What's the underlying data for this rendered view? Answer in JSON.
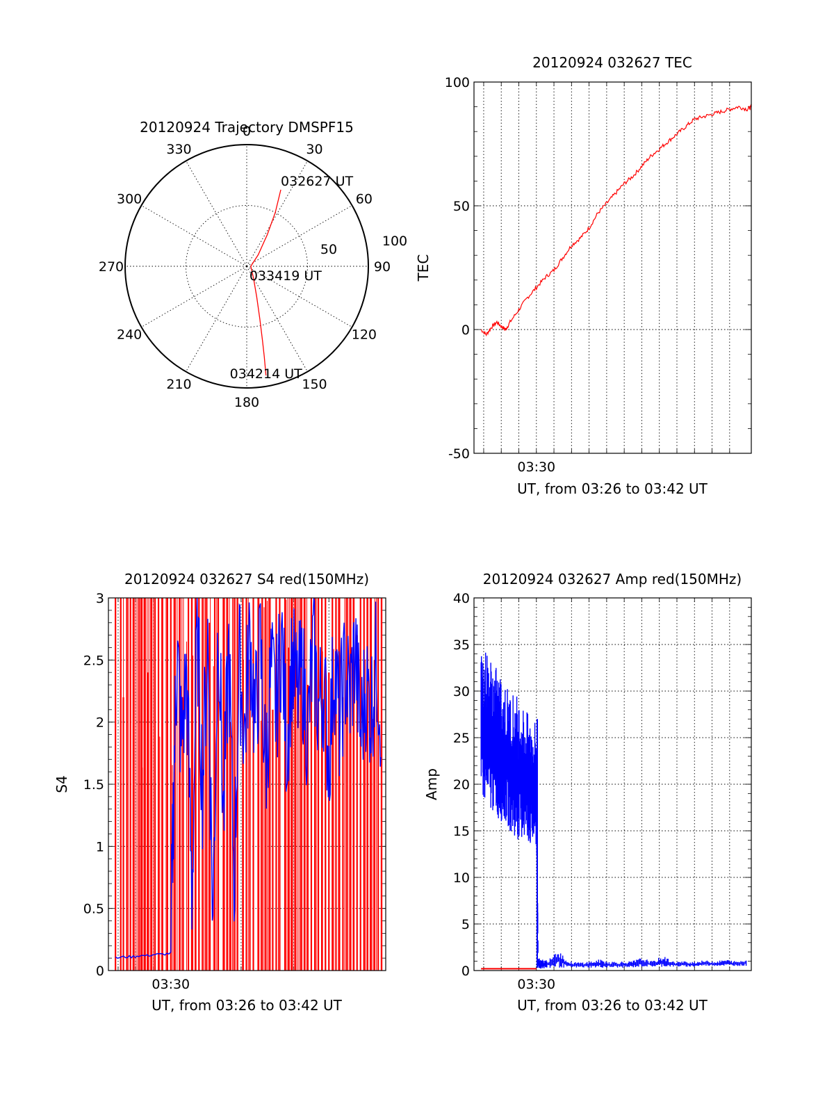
{
  "chart_data": [
    {
      "id": "trajectory",
      "type": "polar",
      "title": "20120924 Trajectory DMSPF15",
      "angle_labels": [
        "0",
        "30",
        "60",
        "90",
        "120",
        "150",
        "180",
        "210",
        "240",
        "270",
        "300",
        "330"
      ],
      "radial_ticks": [
        50,
        100
      ],
      "radial_labels": [
        "50",
        "100"
      ],
      "grid": true,
      "series": [
        {
          "color": "#ff0000",
          "points": [
            {
              "az": 24,
              "el": 28
            },
            {
              "az": 28,
              "el": 45
            },
            {
              "az": 33,
              "el": 62
            },
            {
              "az": 45,
              "el": 78
            },
            {
              "az": 90,
              "el": 87
            },
            {
              "az": 150,
              "el": 80
            },
            {
              "az": 162,
              "el": 66
            },
            {
              "az": 166,
              "el": 50
            },
            {
              "az": 168,
              "el": 34
            },
            {
              "az": 169,
              "el": 22
            },
            {
              "az": 170,
              "el": 8
            }
          ]
        }
      ],
      "annotations": [
        {
          "text": "032627 UT",
          "az": 24,
          "el": 28
        },
        {
          "text": "033419 UT",
          "az": 90,
          "el": 87
        },
        {
          "text": "034214 UT",
          "az": 170,
          "el": 8
        }
      ]
    },
    {
      "id": "tec",
      "type": "line",
      "title": "20120924 032627 TEC",
      "xlabel": "UT, from 03:26 to 03:42 UT",
      "ylabel": "TEC",
      "xlim_min": [
        3.4408,
        3.7039
      ],
      "ylim": [
        -50,
        100
      ],
      "yticks": [
        -50,
        0,
        50,
        100
      ],
      "xtick_labels": [
        {
          "x": 3.5,
          "label": "03:30"
        }
      ],
      "grid": true,
      "series": [
        {
          "color": "#ff0000",
          "x": [
            3.4475,
            3.4525,
            3.4575,
            3.4625,
            3.4675,
            3.4708,
            3.475,
            3.4833,
            3.4917,
            3.5,
            3.5083,
            3.5167,
            3.525,
            3.5333,
            3.5417,
            3.55,
            3.5583,
            3.5667,
            3.575,
            3.5833,
            3.5917,
            3.6,
            3.6083,
            3.6167,
            3.625,
            3.6333,
            3.6417,
            3.65,
            3.6583,
            3.6667,
            3.675,
            3.6833,
            3.6917,
            3.7,
            3.7039
          ],
          "values": [
            0,
            -2,
            1,
            3,
            1,
            0,
            3,
            8,
            13,
            17,
            21,
            24,
            29,
            34,
            37,
            41,
            47,
            51,
            55,
            59,
            62,
            66,
            70,
            73,
            76,
            79,
            82,
            85,
            86,
            87,
            88,
            89,
            90,
            89,
            90
          ]
        }
      ]
    },
    {
      "id": "s4",
      "type": "line",
      "title": "20120924 032627 S4 red(150MHz)",
      "xlabel": "UT, from 03:26 to 03:42 UT",
      "ylabel": "S4",
      "xlim_min": [
        3.4408,
        3.7039
      ],
      "ylim": [
        0,
        3
      ],
      "yticks": [
        0,
        0.5,
        1,
        1.5,
        2,
        2.5,
        3
      ],
      "ytick_labels": [
        "0",
        "0.5",
        "1",
        "1.5",
        "2",
        "2.5",
        "3"
      ],
      "xtick_labels": [
        {
          "x": 3.5,
          "label": "03:30"
        }
      ],
      "grid": true,
      "series": [
        {
          "color": "#ff0000",
          "note_render": "dense spikes between 0 and 3",
          "x": [
            3.4475,
            3.4525,
            3.455,
            3.4583,
            3.4617,
            3.465,
            3.47,
            3.4725,
            3.475,
            3.4783,
            3.4817,
            3.485,
            3.4883,
            3.4917,
            3.4967,
            3.5,
            3.5033,
            3.5083,
            3.5117,
            3.5167,
            3.52,
            3.5233,
            3.5267,
            3.53,
            3.5333,
            3.5367,
            3.5417,
            3.545,
            3.55,
            3.5533,
            3.5567,
            3.56,
            3.5633,
            3.5683,
            3.5717,
            3.575,
            3.5783,
            3.5833,
            3.5867,
            3.59,
            3.5933,
            3.5967,
            3.6,
            3.6033,
            3.6083,
            3.6117,
            3.615,
            3.6183,
            3.6233,
            3.6267,
            3.63,
            3.6333,
            3.6367,
            3.64,
            3.6433,
            3.6467,
            3.65,
            3.6533,
            3.6567,
            3.66,
            3.6633,
            3.6667,
            3.67,
            3.6733,
            3.6767,
            3.68,
            3.6833,
            3.6867,
            3.69,
            3.6933,
            3.6967,
            3.7
          ],
          "values": [
            3,
            3,
            2.2,
            3,
            3,
            3,
            3,
            3,
            3,
            2.4,
            3,
            3,
            3,
            3,
            3,
            3,
            3,
            3,
            2.2,
            3,
            3,
            3,
            3,
            3,
            3,
            2.8,
            3,
            3,
            3,
            3,
            2,
            3,
            3,
            3,
            3,
            2.5,
            3,
            3,
            3,
            3,
            3,
            2.1,
            3,
            3,
            3,
            2.6,
            3,
            3,
            3,
            3,
            2.3,
            3,
            3,
            3,
            3,
            3,
            2.4,
            3,
            3,
            3,
            2.2,
            3,
            3,
            3,
            2.7,
            3,
            3,
            3,
            3,
            2.5,
            3,
            3
          ]
        },
        {
          "color": "#0000ff",
          "x": [
            3.4475,
            3.455,
            3.4625,
            3.47,
            3.4775,
            3.485,
            3.4925,
            3.5,
            3.503,
            3.506,
            3.51,
            3.515,
            3.52,
            3.525,
            3.53,
            3.535,
            3.54,
            3.545,
            3.55,
            3.555,
            3.56,
            3.565,
            3.57,
            3.575,
            3.58,
            3.585,
            3.59,
            3.595,
            3.6,
            3.605,
            3.61,
            3.615,
            3.62,
            3.625,
            3.63,
            3.635,
            3.64,
            3.645,
            3.65,
            3.655,
            3.66,
            3.665,
            3.67,
            3.675,
            3.68,
            3.685,
            3.69,
            3.695,
            3.7
          ],
          "values": [
            0.1,
            0.11,
            0.11,
            0.12,
            0.12,
            0.13,
            0.13,
            0.14,
            1.6,
            2.6,
            1.8,
            2.4,
            0.6,
            2.8,
            1.5,
            2.7,
            0.4,
            2.9,
            1.2,
            2.6,
            0.7,
            2.5,
            1.9,
            2.7,
            2.0,
            2.6,
            1.6,
            2.4,
            2.1,
            2.7,
            1.8,
            2.5,
            2.2,
            2.4,
            1.9,
            2.6,
            2.1,
            2.3,
            1.7,
            2.5,
            2.0,
            2.4,
            2.2,
            2.6,
            1.9,
            2.3,
            2.1,
            2.5,
            2.0
          ]
        }
      ]
    },
    {
      "id": "amp",
      "type": "line",
      "title": "20120924 032627 Amp red(150MHz)",
      "xlabel": "UT, from 03:26 to 03:42 UT",
      "ylabel": "Amp",
      "xlim_min": [
        3.4408,
        3.7039
      ],
      "ylim": [
        0,
        40
      ],
      "yticks": [
        0,
        5,
        10,
        15,
        20,
        25,
        30,
        35,
        40
      ],
      "xtick_labels": [
        {
          "x": 3.5,
          "label": "03:30"
        }
      ],
      "grid": true,
      "series": [
        {
          "color": "#0000ff",
          "note_render": "noisy envelope",
          "x": [
            3.4475,
            3.45,
            3.455,
            3.46,
            3.465,
            3.47,
            3.475,
            3.48,
            3.485,
            3.49,
            3.495,
            3.5,
            3.5017,
            3.5033,
            3.51,
            3.52,
            3.53,
            3.54,
            3.55,
            3.56,
            3.57,
            3.58,
            3.59,
            3.6,
            3.61,
            3.62,
            3.63,
            3.64,
            3.65,
            3.66,
            3.67,
            3.68,
            3.69,
            3.7
          ],
          "upper": [
            34,
            35,
            34,
            33,
            32,
            31,
            30,
            30,
            29,
            28,
            27,
            27,
            1.5,
            1.2,
            1.2,
            2.5,
            1,
            0.9,
            1,
            1.2,
            1,
            1,
            1,
            1.4,
            1,
            1.6,
            1,
            1,
            1,
            1.1,
            1,
            1.2,
            1,
            1.2
          ],
          "lower": [
            20,
            18,
            17,
            17,
            16,
            16,
            15,
            14,
            14,
            14,
            13,
            13,
            0.3,
            0.2,
            0.2,
            0.3,
            0.3,
            0.3,
            0.3,
            0.3,
            0.3,
            0.3,
            0.3,
            0.4,
            0.4,
            0.4,
            0.4,
            0.4,
            0.4,
            0.5,
            0.5,
            0.5,
            0.5,
            0.5
          ]
        },
        {
          "color": "#ff0000",
          "x": [
            3.4475,
            3.46,
            3.47,
            3.48,
            3.49,
            3.5
          ],
          "values": [
            0.2,
            0.2,
            0.2,
            0.2,
            0.2,
            0.2
          ]
        }
      ]
    }
  ]
}
